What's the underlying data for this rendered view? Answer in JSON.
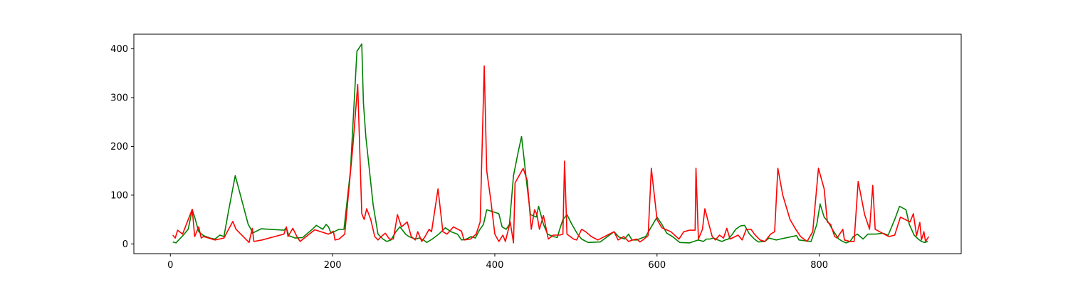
{
  "chart_data": {
    "type": "line",
    "title": "",
    "xlabel": "",
    "ylabel": "",
    "xlim": [
      -45,
      975
    ],
    "ylim": [
      -20,
      430
    ],
    "xticks": [
      0,
      200,
      400,
      600,
      800
    ],
    "yticks": [
      0,
      100,
      200,
      300,
      400
    ],
    "grid": false,
    "legend": "none",
    "series": [
      {
        "color": "#008000",
        "points": [
          [
            3,
            4
          ],
          [
            7,
            2
          ],
          [
            16,
            18
          ],
          [
            22,
            30
          ],
          [
            27,
            70
          ],
          [
            30,
            55
          ],
          [
            35,
            25
          ],
          [
            41,
            17
          ],
          [
            49,
            12
          ],
          [
            55,
            10
          ],
          [
            61,
            18
          ],
          [
            66,
            15
          ],
          [
            72,
            70
          ],
          [
            80,
            140
          ],
          [
            88,
            90
          ],
          [
            96,
            40
          ],
          [
            100,
            28
          ],
          [
            101,
            22
          ],
          [
            112,
            31
          ],
          [
            140,
            28
          ],
          [
            143,
            33
          ],
          [
            146,
            17
          ],
          [
            154,
            12
          ],
          [
            163,
            13
          ],
          [
            175,
            30
          ],
          [
            180,
            38
          ],
          [
            188,
            30
          ],
          [
            192,
            40
          ],
          [
            195,
            35
          ],
          [
            198,
            22
          ],
          [
            208,
            30
          ],
          [
            214,
            30
          ],
          [
            222,
            150
          ],
          [
            230,
            395
          ],
          [
            236,
            410
          ],
          [
            238,
            290
          ],
          [
            241,
            220
          ],
          [
            250,
            80
          ],
          [
            256,
            20
          ],
          [
            262,
            10
          ],
          [
            267,
            5
          ],
          [
            272,
            8
          ],
          [
            278,
            25
          ],
          [
            283,
            35
          ],
          [
            290,
            20
          ],
          [
            294,
            15
          ],
          [
            302,
            10
          ],
          [
            307,
            12
          ],
          [
            312,
            8
          ],
          [
            316,
            3
          ],
          [
            323,
            10
          ],
          [
            331,
            20
          ],
          [
            339,
            33
          ],
          [
            346,
            25
          ],
          [
            354,
            20
          ],
          [
            359,
            8
          ],
          [
            365,
            10
          ],
          [
            371,
            15
          ],
          [
            376,
            12
          ],
          [
            381,
            28
          ],
          [
            386,
            40
          ],
          [
            390,
            70
          ],
          [
            405,
            62
          ],
          [
            409,
            35
          ],
          [
            414,
            30
          ],
          [
            418,
            40
          ],
          [
            423,
            140
          ],
          [
            429,
            190
          ],
          [
            433,
            220
          ],
          [
            436,
            175
          ],
          [
            440,
            115
          ],
          [
            444,
            60
          ],
          [
            451,
            55
          ],
          [
            454,
            77
          ],
          [
            460,
            40
          ],
          [
            465,
            20
          ],
          [
            472,
            15
          ],
          [
            477,
            13
          ],
          [
            480,
            30
          ],
          [
            484,
            50
          ],
          [
            489,
            60
          ],
          [
            495,
            40
          ],
          [
            502,
            20
          ],
          [
            507,
            10
          ],
          [
            515,
            3
          ],
          [
            530,
            4
          ],
          [
            547,
            25
          ],
          [
            553,
            14
          ],
          [
            560,
            10
          ],
          [
            565,
            20
          ],
          [
            569,
            8
          ],
          [
            575,
            8
          ],
          [
            586,
            15
          ],
          [
            594,
            38
          ],
          [
            600,
            55
          ],
          [
            606,
            40
          ],
          [
            612,
            22
          ],
          [
            619,
            15
          ],
          [
            628,
            3
          ],
          [
            640,
            2
          ],
          [
            651,
            8
          ],
          [
            657,
            5
          ],
          [
            661,
            10
          ],
          [
            665,
            10
          ],
          [
            670,
            12
          ],
          [
            675,
            8
          ],
          [
            680,
            5
          ],
          [
            684,
            8
          ],
          [
            688,
            10
          ],
          [
            693,
            20
          ],
          [
            697,
            30
          ],
          [
            703,
            37
          ],
          [
            708,
            38
          ],
          [
            714,
            20
          ],
          [
            720,
            10
          ],
          [
            725,
            4
          ],
          [
            733,
            5
          ],
          [
            738,
            12
          ],
          [
            747,
            8
          ],
          [
            752,
            10
          ],
          [
            772,
            17
          ],
          [
            775,
            8
          ],
          [
            790,
            5
          ],
          [
            797,
            40
          ],
          [
            801,
            82
          ],
          [
            806,
            55
          ],
          [
            811,
            45
          ],
          [
            816,
            30
          ],
          [
            820,
            20
          ],
          [
            824,
            10
          ],
          [
            829,
            5
          ],
          [
            833,
            2
          ],
          [
            838,
            5
          ],
          [
            842,
            15
          ],
          [
            847,
            20
          ],
          [
            854,
            10
          ],
          [
            860,
            20
          ],
          [
            870,
            20
          ],
          [
            878,
            22
          ],
          [
            885,
            18
          ],
          [
            893,
            50
          ],
          [
            899,
            77
          ],
          [
            907,
            70
          ],
          [
            911,
            40
          ],
          [
            917,
            18
          ],
          [
            922,
            10
          ],
          [
            926,
            5
          ],
          [
            930,
            3
          ],
          [
            934,
            5
          ]
        ]
      },
      {
        "color": "#ff0000",
        "points": [
          [
            3,
            18
          ],
          [
            6,
            12
          ],
          [
            9,
            28
          ],
          [
            15,
            20
          ],
          [
            27,
            71
          ],
          [
            30,
            15
          ],
          [
            35,
            35
          ],
          [
            38,
            12
          ],
          [
            41,
            15
          ],
          [
            55,
            8
          ],
          [
            66,
            12
          ],
          [
            77,
            46
          ],
          [
            81,
            30
          ],
          [
            97,
            3
          ],
          [
            101,
            32
          ],
          [
            103,
            5
          ],
          [
            113,
            8
          ],
          [
            140,
            20
          ],
          [
            143,
            35
          ],
          [
            145,
            15
          ],
          [
            151,
            32
          ],
          [
            156,
            15
          ],
          [
            160,
            5
          ],
          [
            178,
            29
          ],
          [
            195,
            20
          ],
          [
            201,
            26
          ],
          [
            203,
            8
          ],
          [
            208,
            10
          ],
          [
            215,
            20
          ],
          [
            225,
            200
          ],
          [
            231,
            327
          ],
          [
            236,
            62
          ],
          [
            239,
            50
          ],
          [
            242,
            72
          ],
          [
            247,
            50
          ],
          [
            252,
            15
          ],
          [
            256,
            8
          ],
          [
            260,
            15
          ],
          [
            265,
            22
          ],
          [
            270,
            10
          ],
          [
            275,
            10
          ],
          [
            280,
            60
          ],
          [
            285,
            35
          ],
          [
            292,
            45
          ],
          [
            297,
            15
          ],
          [
            302,
            8
          ],
          [
            305,
            25
          ],
          [
            310,
            5
          ],
          [
            314,
            15
          ],
          [
            319,
            30
          ],
          [
            322,
            25
          ],
          [
            330,
            113
          ],
          [
            336,
            25
          ],
          [
            341,
            20
          ],
          [
            349,
            35
          ],
          [
            359,
            26
          ],
          [
            362,
            8
          ],
          [
            370,
            10
          ],
          [
            377,
            20
          ],
          [
            382,
            45
          ],
          [
            387,
            365
          ],
          [
            390,
            150
          ],
          [
            395,
            90
          ],
          [
            400,
            20
          ],
          [
            405,
            5
          ],
          [
            410,
            18
          ],
          [
            413,
            5
          ],
          [
            419,
            45
          ],
          [
            423,
            2
          ],
          [
            425,
            125
          ],
          [
            430,
            140
          ],
          [
            435,
            155
          ],
          [
            440,
            130
          ],
          [
            445,
            30
          ],
          [
            449,
            70
          ],
          [
            452,
            60
          ],
          [
            455,
            30
          ],
          [
            460,
            58
          ],
          [
            466,
            10
          ],
          [
            472,
            18
          ],
          [
            480,
            18
          ],
          [
            484,
            20
          ],
          [
            486,
            170
          ],
          [
            489,
            20
          ],
          [
            497,
            10
          ],
          [
            501,
            8
          ],
          [
            507,
            30
          ],
          [
            512,
            25
          ],
          [
            519,
            15
          ],
          [
            527,
            8
          ],
          [
            547,
            25
          ],
          [
            552,
            8
          ],
          [
            559,
            15
          ],
          [
            565,
            5
          ],
          [
            570,
            8
          ],
          [
            575,
            10
          ],
          [
            579,
            4
          ],
          [
            584,
            10
          ],
          [
            589,
            17
          ],
          [
            593,
            155
          ],
          [
            600,
            50
          ],
          [
            606,
            33
          ],
          [
            617,
            25
          ],
          [
            627,
            10
          ],
          [
            633,
            25
          ],
          [
            640,
            28
          ],
          [
            647,
            28
          ],
          [
            648,
            155
          ],
          [
            651,
            10
          ],
          [
            656,
            30
          ],
          [
            659,
            72
          ],
          [
            664,
            40
          ],
          [
            668,
            15
          ],
          [
            672,
            8
          ],
          [
            677,
            18
          ],
          [
            682,
            12
          ],
          [
            686,
            32
          ],
          [
            690,
            10
          ],
          [
            700,
            18
          ],
          [
            705,
            8
          ],
          [
            710,
            30
          ],
          [
            716,
            30
          ],
          [
            720,
            20
          ],
          [
            727,
            8
          ],
          [
            733,
            5
          ],
          [
            740,
            20
          ],
          [
            745,
            25
          ],
          [
            749,
            155
          ],
          [
            755,
            100
          ],
          [
            764,
            50
          ],
          [
            771,
            30
          ],
          [
            777,
            15
          ],
          [
            785,
            5
          ],
          [
            792,
            25
          ],
          [
            799,
            155
          ],
          [
            806,
            113
          ],
          [
            810,
            45
          ],
          [
            814,
            40
          ],
          [
            819,
            15
          ],
          [
            822,
            12
          ],
          [
            829,
            30
          ],
          [
            831,
            8
          ],
          [
            838,
            5
          ],
          [
            843,
            5
          ],
          [
            848,
            128
          ],
          [
            856,
            60
          ],
          [
            862,
            30
          ],
          [
            866,
            120
          ],
          [
            869,
            30
          ],
          [
            880,
            20
          ],
          [
            886,
            15
          ],
          [
            893,
            18
          ],
          [
            900,
            55
          ],
          [
            906,
            50
          ],
          [
            912,
            45
          ],
          [
            916,
            62
          ],
          [
            920,
            17
          ],
          [
            924,
            44
          ],
          [
            926,
            8
          ],
          [
            929,
            25
          ],
          [
            931,
            5
          ],
          [
            935,
            15
          ]
        ]
      }
    ]
  }
}
